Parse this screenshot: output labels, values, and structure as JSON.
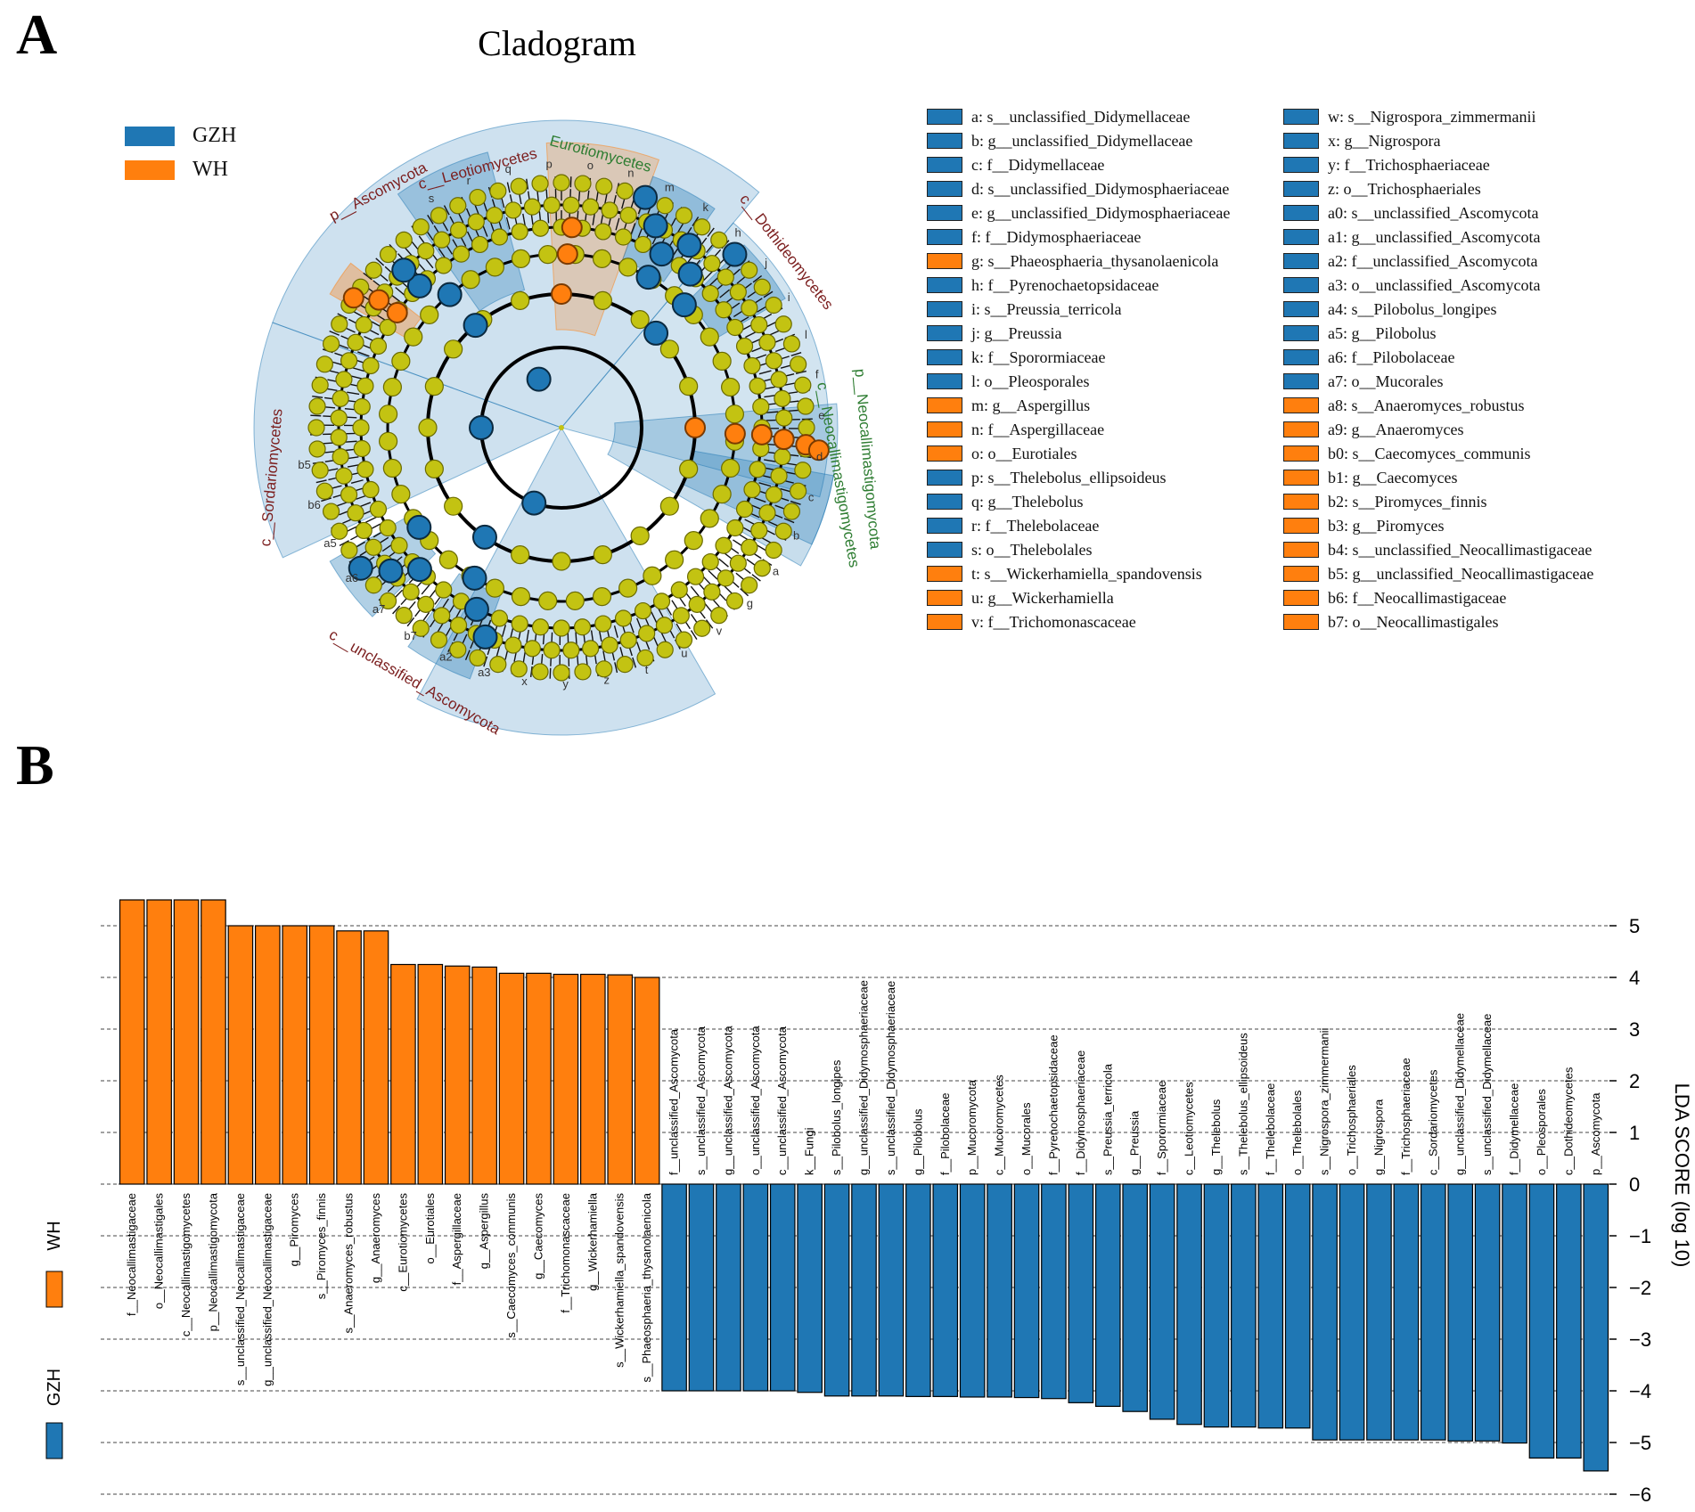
{
  "panels": {
    "a": "A",
    "b": "B"
  },
  "cladogram": {
    "title": "Cladogram",
    "groups": [
      {
        "label": "GZH",
        "color": "#1f77b4"
      },
      {
        "label": "WH",
        "color": "#ff7f0e"
      }
    ],
    "clade_labels": [
      "p__Ascomycota",
      "c__Leotiomycetes",
      "Eurotiomycetes",
      "c__Dothideomycetes",
      "c__Sordariomycetes",
      "c__unclassified_Ascomycota",
      "p__Neocallimastigomycota",
      "c__Neocallimastigomycetes"
    ],
    "marker_letters": [
      "s",
      "r",
      "q",
      "p",
      "o",
      "n",
      "m",
      "k",
      "h",
      "j",
      "i",
      "l",
      "f",
      "e",
      "d",
      "c",
      "b",
      "a",
      "g",
      "v",
      "u",
      "t",
      "z",
      "y",
      "x",
      "a3",
      "a2",
      "b7",
      "a7",
      "a6",
      "a5",
      "b6",
      "b5"
    ],
    "legend": [
      {
        "text": "a: s__unclassified_Didymellaceae",
        "group": "GZH"
      },
      {
        "text": "b: g__unclassified_Didymellaceae",
        "group": "GZH"
      },
      {
        "text": "c: f__Didymellaceae",
        "group": "GZH"
      },
      {
        "text": "d: s__unclassified_Didymosphaeriaceae",
        "group": "GZH"
      },
      {
        "text": "e: g__unclassified_Didymosphaeriaceae",
        "group": "GZH"
      },
      {
        "text": "f: f__Didymosphaeriaceae",
        "group": "GZH"
      },
      {
        "text": "g: s__Phaeosphaeria_thysanolaenicola",
        "group": "WH"
      },
      {
        "text": "h: f__Pyrenochaetopsidaceae",
        "group": "GZH"
      },
      {
        "text": "i: s__Preussia_terricola",
        "group": "GZH"
      },
      {
        "text": "j: g__Preussia",
        "group": "GZH"
      },
      {
        "text": "k: f__Sporormiaceae",
        "group": "GZH"
      },
      {
        "text": "l: o__Pleosporales",
        "group": "GZH"
      },
      {
        "text": "m: g__Aspergillus",
        "group": "WH"
      },
      {
        "text": "n: f__Aspergillaceae",
        "group": "WH"
      },
      {
        "text": "o: o__Eurotiales",
        "group": "WH"
      },
      {
        "text": "p: s__Thelebolus_ellipsoideus",
        "group": "GZH"
      },
      {
        "text": "q: g__Thelebolus",
        "group": "GZH"
      },
      {
        "text": "r: f__Thelebolaceae",
        "group": "GZH"
      },
      {
        "text": "s: o__Thelebolales",
        "group": "GZH"
      },
      {
        "text": "t: s__Wickerhamiella_spandovensis",
        "group": "WH"
      },
      {
        "text": "u: g__Wickerhamiella",
        "group": "WH"
      },
      {
        "text": "v: f__Trichomonascaceae",
        "group": "WH"
      },
      {
        "text": "w: s__Nigrospora_zimmermanii",
        "group": "GZH"
      },
      {
        "text": "x: g__Nigrospora",
        "group": "GZH"
      },
      {
        "text": "y: f__Trichosphaeriaceae",
        "group": "GZH"
      },
      {
        "text": "z: o__Trichosphaeriales",
        "group": "GZH"
      },
      {
        "text": "a0: s__unclassified_Ascomycota",
        "group": "GZH"
      },
      {
        "text": "a1: g__unclassified_Ascomycota",
        "group": "GZH"
      },
      {
        "text": "a2: f__unclassified_Ascomycota",
        "group": "GZH"
      },
      {
        "text": "a3: o__unclassified_Ascomycota",
        "group": "GZH"
      },
      {
        "text": "a4: s__Pilobolus_longipes",
        "group": "GZH"
      },
      {
        "text": "a5: g__Pilobolus",
        "group": "GZH"
      },
      {
        "text": "a6: f__Pilobolaceae",
        "group": "GZH"
      },
      {
        "text": "a7: o__Mucorales",
        "group": "GZH"
      },
      {
        "text": "a8: s__Anaeromyces_robustus",
        "group": "WH"
      },
      {
        "text": "a9: g__Anaeromyces",
        "group": "WH"
      },
      {
        "text": "b0: s__Caecomyces_communis",
        "group": "WH"
      },
      {
        "text": "b1: g__Caecomyces",
        "group": "WH"
      },
      {
        "text": "b2: s__Piromyces_finnis",
        "group": "WH"
      },
      {
        "text": "b3: g__Piromyces",
        "group": "WH"
      },
      {
        "text": "b4: s__unclassified_Neocallimastigaceae",
        "group": "WH"
      },
      {
        "text": "b5: g__unclassified_Neocallimastigaceae",
        "group": "WH"
      },
      {
        "text": "b6: f__Neocallimastigaceae",
        "group": "WH"
      },
      {
        "text": "b7: o__Neocallimastigales",
        "group": "WH"
      }
    ]
  },
  "chart_data": {
    "type": "bar",
    "ylabel": "LDA SCORE (log 10)",
    "ylim": [
      -6,
      5.5
    ],
    "yticks": [
      5,
      4,
      3,
      2,
      1,
      0,
      -1,
      -2,
      -3,
      -4,
      -5,
      -6
    ],
    "grid": true,
    "legend": [
      {
        "label": "WH",
        "color": "#ff7f0e"
      },
      {
        "label": "GZH",
        "color": "#1f77b4"
      }
    ],
    "categories": [
      "f__Neocallimastigaceae",
      "o__Neocallimastigales",
      "c__Neocallimastigomycetes",
      "p__Neocallimastigomycota",
      "s__unclassified_Neocallimastigaceae",
      "g__unclassified_Neocallimastigaceae",
      "g__Piromyces",
      "s__Piromyces_finnis",
      "s__Anaeromyces_robustus",
      "g__Anaeromyces",
      "c__Eurotiomycetes",
      "o__Eurotiales",
      "f__Aspergillaceae",
      "g__Aspergillus",
      "s__Caecomyces_communis",
      "g__Caecomyces",
      "f__Trichomonascaceae",
      "g__Wickerhamiella",
      "s__Wickerhamiella_spandovensis",
      "s__Phaeosphaeria_thysanolaenicola",
      "f__unclassified_Ascomycota",
      "s__unclassified_Ascomycota",
      "g__unclassified_Ascomycota",
      "o__unclassified_Ascomycota",
      "c__unclassified_Ascomycota",
      "k__Fungi",
      "s__Pilobolus_longipes",
      "g__unclassified_Didymosphaeriaceae",
      "s__unclassified_Didymosphaeriaceae",
      "g__Pilobolus",
      "f__Pilobolaceae",
      "p__Mucoromycota",
      "c__Mucoromycetes",
      "o__Mucorales",
      "f__Pyrenochaetopsidaceae",
      "f__Didymosphaeriaceae",
      "s__Preussia_terricola",
      "g__Preussia",
      "f__Sporormiaceae",
      "c__Leotiomycetes",
      "g__Thelebolus",
      "s__Thelebolus_ellipsoideus",
      "f__Thelebolaceae",
      "o__Thelebolales",
      "s__Nigrospora_zimmermanii",
      "o__Trichosphaeriales",
      "g__Nigrospora",
      "f__Trichosphaeriaceae",
      "c__Sordariomycetes",
      "g__unclassified_Didymellaceae",
      "s__unclassified_Didymellaceae",
      "f__Didymellaceae",
      "o__Pleosporales",
      "c__Dothideomycetes",
      "p__Ascomycota"
    ],
    "values": [
      5.5,
      5.5,
      5.5,
      5.5,
      5.0,
      5.0,
      5.0,
      5.0,
      4.9,
      4.9,
      4.25,
      4.25,
      4.22,
      4.2,
      4.08,
      4.08,
      4.06,
      4.06,
      4.05,
      4.0,
      -4.0,
      -4.0,
      -4.0,
      -4.0,
      -4.0,
      -4.03,
      -4.1,
      -4.1,
      -4.1,
      -4.11,
      -4.11,
      -4.12,
      -4.12,
      -4.13,
      -4.15,
      -4.23,
      -4.3,
      -4.4,
      -4.55,
      -4.65,
      -4.7,
      -4.7,
      -4.72,
      -4.72,
      -4.95,
      -4.95,
      -4.95,
      -4.95,
      -4.95,
      -4.97,
      -4.97,
      -5.01,
      -5.3,
      -5.3,
      -5.55
    ],
    "groups": [
      "WH",
      "WH",
      "WH",
      "WH",
      "WH",
      "WH",
      "WH",
      "WH",
      "WH",
      "WH",
      "WH",
      "WH",
      "WH",
      "WH",
      "WH",
      "WH",
      "WH",
      "WH",
      "WH",
      "WH",
      "GZH",
      "GZH",
      "GZH",
      "GZH",
      "GZH",
      "GZH",
      "GZH",
      "GZH",
      "GZH",
      "GZH",
      "GZH",
      "GZH",
      "GZH",
      "GZH",
      "GZH",
      "GZH",
      "GZH",
      "GZH",
      "GZH",
      "GZH",
      "GZH",
      "GZH",
      "GZH",
      "GZH",
      "GZH",
      "GZH",
      "GZH",
      "GZH",
      "GZH",
      "GZH",
      "GZH",
      "GZH",
      "GZH",
      "GZH",
      "GZH"
    ]
  }
}
